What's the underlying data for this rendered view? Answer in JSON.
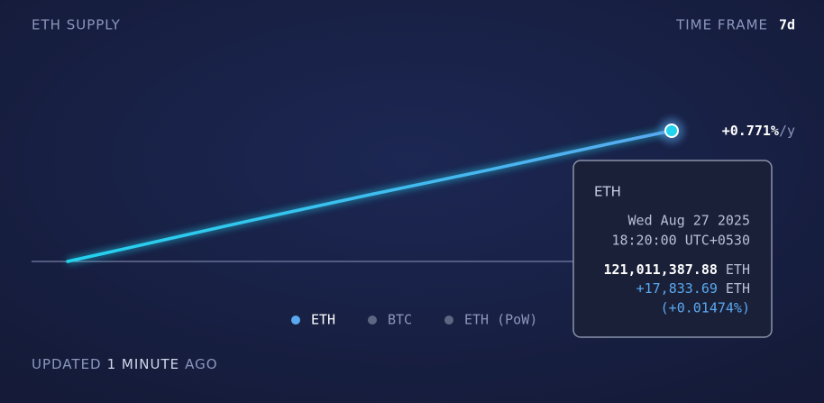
{
  "header": {
    "title": "ETH SUPPLY",
    "time_frame_label": "TIME FRAME",
    "time_frame": "7d"
  },
  "chart_data": {
    "type": "line",
    "series": [
      {
        "name": "ETH",
        "color": "#5aa9f0",
        "values": [
          0,
          1840,
          3690,
          5530,
          7320,
          9100,
          10820,
          12540,
          14330,
          16110,
          17833.69
        ]
      }
    ],
    "hidden_series": [
      {
        "name": "BTC",
        "color": "#5f6682"
      },
      {
        "name": "ETH (PoW)",
        "color": "#5f6682"
      }
    ],
    "end_label": {
      "value": "+0.771%",
      "unit": "/y"
    }
  },
  "tooltip": {
    "title": "ETH",
    "date": "Wed Aug 27 2025",
    "time": "18:20:00 UTC+0530",
    "supply": "121,011,387.88",
    "supply_unit": "ETH",
    "change": "+17,833.69",
    "change_unit": "ETH",
    "change_pct": "(+0.01474%)"
  },
  "footer": {
    "prefix": "UPDATED",
    "amount": "1 MINUTE",
    "suffix": "AGO"
  }
}
